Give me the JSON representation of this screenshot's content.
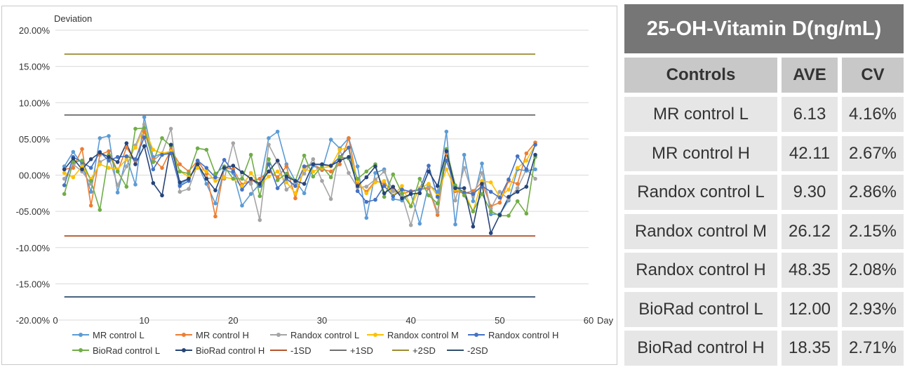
{
  "table": {
    "title": "25-OH-Vitamin D(ng/mL)",
    "headers": [
      "Controls",
      "AVE",
      "CV"
    ],
    "rows": [
      {
        "control": "MR control L",
        "ave": "6.13",
        "cv": "4.16%"
      },
      {
        "control": "MR control H",
        "ave": "42.11",
        "cv": "2.67%"
      },
      {
        "control": "Randox control L",
        "ave": "9.30",
        "cv": "2.86%"
      },
      {
        "control": "Randox control M",
        "ave": "26.12",
        "cv": "2.15%"
      },
      {
        "control": "Randox control H",
        "ave": "48.35",
        "cv": "2.08%"
      },
      {
        "control": "BioRad control L",
        "ave": "12.00",
        "cv": "2.93%"
      },
      {
        "control": "BioRad control H",
        "ave": "18.35",
        "cv": "2.71%"
      }
    ]
  },
  "chart_data": {
    "type": "line",
    "ylabel": "Deviation",
    "xlabel": "Day",
    "ylim": [
      -20,
      20
    ],
    "xlim": [
      0,
      60
    ],
    "y_ticks": [
      "20.00%",
      "15.00%",
      "10.00%",
      "05.00%",
      "00.00%",
      "-05.00%",
      "-10.00%",
      "-15.00%",
      "-20.00%"
    ],
    "y_tick_values": [
      20,
      15,
      10,
      5,
      0,
      -5,
      -10,
      -15,
      -20
    ],
    "x_ticks": [
      "0",
      "10",
      "20",
      "30",
      "40",
      "50",
      "60"
    ],
    "x_tick_values": [
      0,
      10,
      20,
      30,
      40,
      50,
      60
    ],
    "grid": "horizontal",
    "legend_position": "bottom",
    "series": [
      {
        "name": "MR control L",
        "color": "#5b9bd5",
        "marker": true,
        "x": [
          1,
          2,
          3,
          4,
          5,
          6,
          7,
          8,
          9,
          10,
          11,
          12,
          13,
          14,
          15,
          16,
          17,
          18,
          19,
          20,
          21,
          22,
          23,
          24,
          25,
          26,
          27,
          28,
          29,
          30,
          31,
          32,
          33,
          34,
          35,
          36,
          37,
          38,
          39,
          40,
          41,
          42,
          43,
          44,
          45,
          46,
          47,
          48,
          49,
          50,
          51,
          52,
          53,
          54
        ],
        "y": [
          1.2,
          3.2,
          1.5,
          -2.3,
          5.1,
          5.4,
          -2.4,
          2.5,
          -1.3,
          8.0,
          2.5,
          3.0,
          3.1,
          -1.3,
          -0.5,
          1.5,
          -1.2,
          -3.9,
          0.8,
          0.3,
          -4.2,
          -2.6,
          -1.2,
          5.1,
          6.0,
          1.5,
          -0.8,
          -2.5,
          1.3,
          0.7,
          4.9,
          3.7,
          5.1,
          1.2,
          -5.9,
          0.3,
          0.8,
          -3.3,
          -3.5,
          -2.6,
          -6.7,
          -1.3,
          -2.3,
          6.0,
          -6.8,
          2.8,
          -3.6,
          1.6,
          -5.4,
          -5.4,
          -3.5,
          0.8,
          0.6,
          0.8
        ]
      },
      {
        "name": "MR control H",
        "color": "#ed7d31",
        "marker": true,
        "x": [
          1,
          2,
          3,
          4,
          5,
          6,
          7,
          8,
          9,
          10,
          11,
          12,
          13,
          14,
          15,
          16,
          17,
          18,
          19,
          20,
          21,
          22,
          23,
          24,
          25,
          26,
          27,
          28,
          29,
          30,
          31,
          32,
          33,
          34,
          35,
          36,
          37,
          38,
          39,
          40,
          41,
          42,
          43,
          44,
          45,
          46,
          47,
          48,
          49,
          50,
          51,
          52,
          53,
          54
        ],
        "y": [
          0.8,
          1.0,
          3.6,
          -4.2,
          2.8,
          3.3,
          0.5,
          3.8,
          2.0,
          6.0,
          2.2,
          1.0,
          3.5,
          1.5,
          0.5,
          2.0,
          0.2,
          -5.7,
          1.0,
          0.8,
          -1.3,
          -0.8,
          -0.5,
          0.5,
          -0.3,
          1.2,
          -3.2,
          1.0,
          1.5,
          0.8,
          0.5,
          1.5,
          5.1,
          -1.1,
          -2.3,
          -0.8,
          -1.2,
          -2.1,
          -2.6,
          -2.2,
          -2.0,
          -1.8,
          -5.5,
          3.0,
          -2.2,
          -2.5,
          -2.2,
          -1.0,
          -4.3,
          -3.8,
          -0.8,
          -1.2,
          3.0,
          4.5
        ]
      },
      {
        "name": "Randox control L",
        "color": "#a5a5a5",
        "marker": true,
        "x": [
          1,
          2,
          3,
          4,
          5,
          6,
          7,
          8,
          9,
          10,
          11,
          12,
          13,
          14,
          15,
          16,
          17,
          18,
          19,
          20,
          21,
          22,
          23,
          24,
          25,
          26,
          27,
          28,
          29,
          30,
          31,
          32,
          33,
          34,
          35,
          36,
          37,
          38,
          39,
          40,
          41,
          42,
          43,
          44,
          45,
          46,
          47,
          48,
          49,
          50,
          51,
          52,
          53,
          54
        ],
        "y": [
          -0.5,
          1.5,
          0.5,
          -1.2,
          1.8,
          2.5,
          -1.4,
          1.2,
          4.1,
          7.0,
          2.0,
          3.0,
          6.4,
          -2.3,
          -1.9,
          1.5,
          -0.5,
          -0.3,
          -0.5,
          4.4,
          -0.5,
          -1.2,
          -6.2,
          4.2,
          1.8,
          -2.0,
          -1.0,
          0.2,
          2.2,
          -0.8,
          -3.3,
          3.5,
          0.3,
          -1.7,
          -1.6,
          -0.6,
          0.5,
          -2.2,
          -2.8,
          -6.9,
          -2.0,
          -1.6,
          -5.1,
          3.5,
          -3.5,
          1.0,
          -2.8,
          0.3,
          -4.6,
          -2.3,
          -3.3,
          -1.8,
          0.8,
          -0.5
        ]
      },
      {
        "name": "Randox control M",
        "color": "#ffc000",
        "marker": true,
        "x": [
          1,
          2,
          3,
          4,
          5,
          6,
          7,
          8,
          9,
          10,
          11,
          12,
          13,
          14,
          15,
          16,
          17,
          18,
          19,
          20,
          21,
          22,
          23,
          24,
          25,
          26,
          27,
          28,
          29,
          30,
          31,
          32,
          33,
          34,
          35,
          36,
          37,
          38,
          39,
          40,
          41,
          42,
          43,
          44,
          45,
          46,
          47,
          48,
          49,
          50,
          51,
          52,
          53,
          54
        ],
        "y": [
          0.3,
          -0.3,
          1.2,
          -0.5,
          1.5,
          1.0,
          0.8,
          2.2,
          3.8,
          6.5,
          3.5,
          3.0,
          3.3,
          0.5,
          -0.2,
          1.0,
          0.5,
          -0.8,
          -0.3,
          -0.5,
          -1.5,
          0.3,
          -1.3,
          -0.2,
          0.5,
          -1.0,
          -2.5,
          0.8,
          0.5,
          1.0,
          1.2,
          3.5,
          3.8,
          -0.8,
          -2.5,
          -1.0,
          -0.8,
          -2.8,
          -1.5,
          -4.3,
          -1.8,
          -1.2,
          -2.8,
          0.8,
          -2.0,
          -2.3,
          -5.0,
          -0.8,
          -1.0,
          -3.0,
          -2.0,
          1.0,
          2.0,
          4.2
        ]
      },
      {
        "name": "Randox control H",
        "color": "#4472c4",
        "marker": true,
        "x": [
          1,
          2,
          3,
          4,
          5,
          6,
          7,
          8,
          9,
          10,
          11,
          12,
          13,
          14,
          15,
          16,
          17,
          18,
          19,
          20,
          21,
          22,
          23,
          24,
          25,
          26,
          27,
          28,
          29,
          30,
          31,
          32,
          33,
          34,
          35,
          36,
          37,
          38,
          39,
          40,
          41,
          42,
          43,
          44,
          45,
          46,
          47,
          48,
          49,
          50,
          51,
          52,
          53,
          54
        ],
        "y": [
          -1.4,
          2.5,
          1.8,
          1.0,
          3.2,
          2.0,
          2.5,
          2.6,
          2.2,
          5.2,
          0.8,
          2.8,
          3.0,
          -1.5,
          -0.8,
          2.0,
          1.0,
          -0.3,
          2.1,
          0.5,
          -2.0,
          -0.5,
          -1.5,
          1.5,
          -1.8,
          -0.5,
          -1.5,
          1.2,
          1.5,
          1.4,
          1.3,
          2.5,
          3.8,
          -2.2,
          -3.7,
          -3.4,
          -1.5,
          -2.9,
          -2.0,
          -2.3,
          -2.0,
          1.3,
          -3.0,
          2.0,
          -1.5,
          -2.4,
          -2.6,
          -1.5,
          -2.3,
          -3.1,
          -0.6,
          2.6,
          0.8,
          4.2
        ]
      },
      {
        "name": "BioRad control L",
        "color": "#70ad47",
        "marker": true,
        "x": [
          1,
          2,
          3,
          4,
          5,
          6,
          7,
          8,
          9,
          10,
          11,
          12,
          13,
          14,
          15,
          16,
          17,
          18,
          19,
          20,
          21,
          22,
          23,
          24,
          25,
          26,
          27,
          28,
          29,
          30,
          31,
          32,
          33,
          34,
          35,
          36,
          37,
          38,
          39,
          40,
          41,
          42,
          43,
          44,
          45,
          46,
          47,
          48,
          49,
          50,
          51,
          52,
          53,
          54
        ],
        "y": [
          -2.6,
          1.8,
          2.0,
          -0.8,
          -4.8,
          2.8,
          0.5,
          -1.6,
          6.4,
          6.5,
          1.8,
          5.1,
          4.0,
          0.5,
          0.2,
          3.7,
          3.5,
          0.2,
          1.2,
          -0.5,
          -0.5,
          2.8,
          -2.9,
          2.2,
          -0.7,
          0.2,
          -0.8,
          2.7,
          -0.2,
          1.2,
          -0.3,
          2.5,
          2.3,
          -0.5,
          0.5,
          1.5,
          -3.0,
          0.1,
          -2.5,
          -4.3,
          -0.5,
          -2.8,
          -3.9,
          3.6,
          -1.4,
          -2.8,
          -5.0,
          -2.6,
          -5.0,
          -5.6,
          -5.6,
          -3.6,
          -5.3,
          2.5
        ]
      },
      {
        "name": "BioRad control H",
        "color": "#264478",
        "marker": true,
        "x": [
          1,
          2,
          3,
          4,
          5,
          6,
          7,
          8,
          9,
          10,
          11,
          12,
          13,
          14,
          15,
          16,
          17,
          18,
          19,
          20,
          21,
          22,
          23,
          24,
          25,
          26,
          27,
          28,
          29,
          30,
          31,
          32,
          33,
          34,
          35,
          36,
          37,
          38,
          39,
          40,
          41,
          42,
          43,
          44,
          45,
          46,
          47,
          48,
          49,
          50,
          51,
          52,
          53,
          54
        ],
        "y": [
          0.8,
          2.3,
          0.8,
          2.2,
          3.1,
          2.5,
          1.8,
          4.4,
          1.5,
          4.0,
          -1.1,
          -2.8,
          4.2,
          -1.0,
          -0.5,
          1.5,
          -0.5,
          -2.1,
          1.0,
          1.3,
          0.4,
          -0.5,
          -1.2,
          0.5,
          2.0,
          -0.2,
          -0.8,
          -1.2,
          1.5,
          1.5,
          1.3,
          2.0,
          2.5,
          -1.5,
          -0.3,
          1.2,
          -2.5,
          -1.6,
          -3.2,
          -2.6,
          -2.5,
          0.5,
          -1.5,
          3.3,
          -1.8,
          -1.8,
          -7.1,
          -1.2,
          -8.0,
          -5.5,
          -3.0,
          -2.3,
          -1.6,
          2.8
        ]
      },
      {
        "name": "-1SD",
        "color": "#b5532a",
        "marker": false,
        "x": [
          1,
          54
        ],
        "y": [
          -8.4,
          -8.4
        ]
      },
      {
        "name": "+1SD",
        "color": "#6f6f6f",
        "marker": false,
        "x": [
          1,
          54
        ],
        "y": [
          8.3,
          8.3
        ]
      },
      {
        "name": "+2SD",
        "color": "#9c8b32",
        "marker": false,
        "x": [
          1,
          54
        ],
        "y": [
          16.7,
          16.7
        ]
      },
      {
        "name": "-2SD",
        "color": "#2f4d6e",
        "marker": false,
        "x": [
          1,
          54
        ],
        "y": [
          -16.8,
          -16.8
        ]
      }
    ]
  }
}
